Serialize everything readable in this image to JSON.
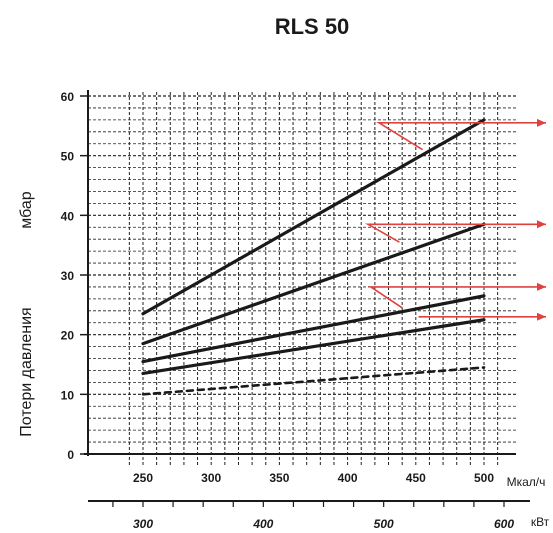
{
  "chart_data": {
    "type": "line",
    "title": "RLS 50",
    "ylabel": "Потери давления",
    "yunit": "мбар",
    "x_unit": "Мкал/ч",
    "x2_unit": "кВт",
    "ylim": [
      0,
      60
    ],
    "xlim": [
      237,
      500
    ],
    "x_ticks": [
      250,
      300,
      350,
      400,
      450,
      500
    ],
    "y_ticks": [
      0,
      10,
      20,
      30,
      40,
      50,
      60
    ],
    "x2_ticks": [
      300,
      400,
      500,
      600
    ],
    "grid": true,
    "series": [
      {
        "style": "solid",
        "x": [
          250,
          500
        ],
        "y": [
          23.5,
          56
        ]
      },
      {
        "style": "solid",
        "x": [
          250,
          500
        ],
        "y": [
          18.5,
          38.5
        ]
      },
      {
        "style": "solid",
        "x": [
          250,
          500
        ],
        "y": [
          15.5,
          26.5
        ]
      },
      {
        "style": "solid",
        "x": [
          250,
          500
        ],
        "y": [
          13.5,
          22.5
        ]
      },
      {
        "style": "dashed",
        "x": [
          250,
          500
        ],
        "y": [
          10,
          14.5
        ]
      }
    ],
    "colors": {
      "line": "#1a1a1a",
      "grid": "#222222",
      "arrow": "#e0433f"
    }
  }
}
